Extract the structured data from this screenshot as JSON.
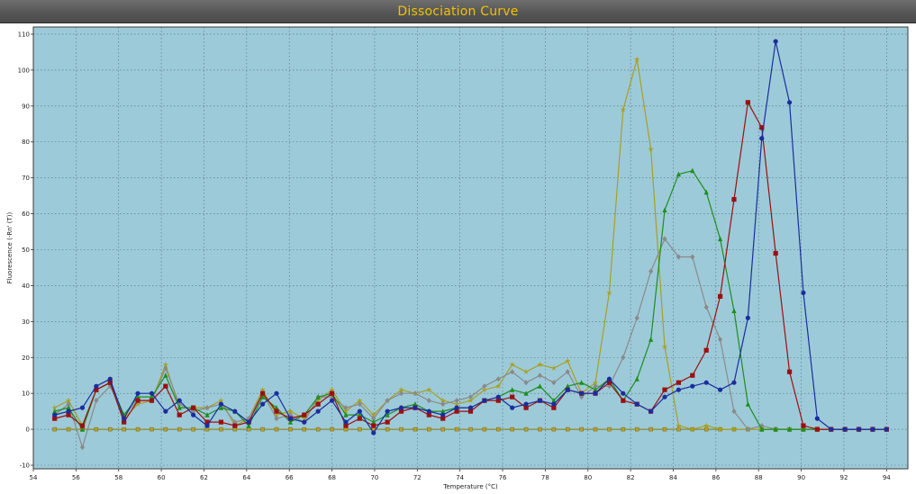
{
  "window": {
    "title": "Dissociation Curve"
  },
  "chart_data": {
    "type": "line",
    "title": "Dissociation Curve",
    "xlabel": "Temperature (°C)",
    "ylabel": "Fluorescence (-Rn' (T))",
    "xlim": [
      54,
      95
    ],
    "ylim": [
      -11,
      112
    ],
    "xticks": [
      54,
      56,
      58,
      60,
      62,
      64,
      66,
      68,
      70,
      72,
      74,
      76,
      78,
      80,
      82,
      84,
      86,
      88,
      90,
      92,
      94
    ],
    "yticks": [
      -10,
      0,
      10,
      20,
      30,
      40,
      50,
      60,
      70,
      80,
      90,
      100,
      110
    ],
    "grid": true,
    "background_color": "#9dcad9",
    "x": [
      55.0,
      55.65,
      56.3,
      56.95,
      57.6,
      58.25,
      58.9,
      59.55,
      60.2,
      60.85,
      61.5,
      62.15,
      62.8,
      63.45,
      64.1,
      64.75,
      65.4,
      66.05,
      66.7,
      67.35,
      68.0,
      68.65,
      69.3,
      69.95,
      70.6,
      71.25,
      71.9,
      72.55,
      73.2,
      73.85,
      74.5,
      75.15,
      75.8,
      76.45,
      77.1,
      77.75,
      78.4,
      79.05,
      79.7,
      80.35,
      81.0,
      81.65,
      82.3,
      82.95,
      83.6,
      84.25,
      84.9,
      85.55,
      86.2,
      86.85,
      87.5,
      88.15,
      88.8,
      89.45,
      90.1,
      90.75,
      91.4,
      92.05,
      92.7,
      93.35,
      94.0
    ],
    "series": [
      {
        "marker": "circle",
        "color": "#1a2d9e",
        "values": [
          4,
          5,
          6,
          12,
          14,
          3,
          10,
          10,
          5,
          8,
          4,
          1,
          7,
          5,
          2,
          7,
          10,
          3,
          2,
          5,
          8,
          2,
          5,
          -1,
          5,
          6,
          6,
          5,
          4,
          6,
          6,
          8,
          9,
          6,
          7,
          8,
          7,
          11,
          10,
          10,
          14,
          10,
          7,
          5,
          9,
          11,
          12,
          13,
          11,
          13,
          31,
          81,
          108,
          91,
          38,
          3,
          0,
          0,
          0,
          0,
          0
        ]
      },
      {
        "marker": "square",
        "color": "#9c0f0f",
        "values": [
          3,
          4,
          1,
          11,
          13,
          2,
          8,
          8,
          12,
          4,
          6,
          2,
          2,
          1,
          2,
          10,
          5,
          3,
          4,
          7,
          10,
          1,
          3,
          1,
          2,
          5,
          6,
          4,
          3,
          5,
          5,
          8,
          8,
          9,
          6,
          8,
          6,
          11,
          10,
          10,
          13,
          8,
          7,
          5,
          11,
          13,
          15,
          22,
          37,
          64,
          91,
          84,
          49,
          16,
          1,
          0,
          0,
          0,
          0,
          0,
          0
        ]
      },
      {
        "marker": "triangle",
        "color": "#1c8f1c",
        "values": [
          5,
          6,
          0,
          11,
          13,
          4,
          9,
          9,
          15,
          6,
          6,
          4,
          6,
          5,
          1,
          9,
          6,
          2,
          4,
          9,
          10,
          4,
          4,
          2,
          4,
          6,
          7,
          5,
          5,
          6,
          6,
          8,
          9,
          11,
          10,
          12,
          8,
          12,
          13,
          11,
          14,
          8,
          14,
          25,
          61,
          71,
          72,
          66,
          53,
          33,
          7,
          0,
          0,
          0,
          0,
          0,
          0,
          0,
          0,
          0,
          0
        ]
      },
      {
        "marker": "diamond",
        "color": "#8a8a8a",
        "values": [
          4,
          7,
          -5,
          8,
          12,
          4,
          8,
          8,
          17,
          7,
          5,
          6,
          7,
          2,
          3,
          10,
          3,
          4,
          2,
          9,
          9,
          6,
          7,
          3,
          8,
          10,
          10,
          8,
          7,
          8,
          9,
          12,
          14,
          16,
          13,
          15,
          13,
          16,
          9,
          12,
          12,
          20,
          31,
          44,
          53,
          48,
          48,
          34,
          25,
          5,
          0,
          1,
          0,
          0,
          0,
          0,
          0,
          0,
          0,
          0,
          0
        ]
      },
      {
        "marker": "star",
        "color": "#a8a020",
        "values": [
          6,
          8,
          1,
          11,
          13,
          3,
          7,
          8,
          18,
          6,
          6,
          6,
          8,
          1,
          3,
          11,
          4,
          5,
          3,
          8,
          11,
          5,
          8,
          4,
          8,
          11,
          10,
          11,
          8,
          7,
          8,
          11,
          12,
          18,
          16,
          18,
          17,
          19,
          10,
          13,
          38,
          89,
          103,
          78,
          23,
          1,
          0,
          1,
          0,
          0,
          0,
          0,
          0,
          0,
          0,
          0,
          0,
          0,
          0,
          0,
          0
        ]
      }
    ]
  }
}
